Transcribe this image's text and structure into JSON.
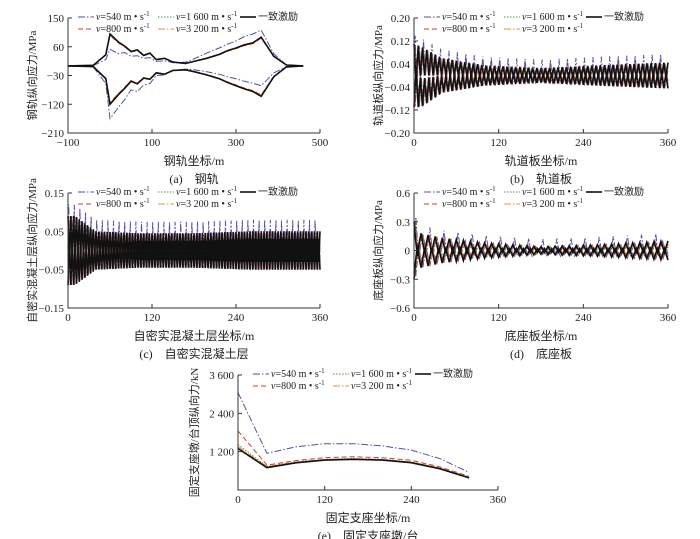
{
  "legend": [
    {
      "key": "v540",
      "pre": "v",
      "label": "=540 m • s",
      "sup": "-1",
      "color": "#4f4fae",
      "dash": "7 2 1.5 2",
      "width": 1
    },
    {
      "key": "v1600",
      "pre": "v",
      "label": "=1 600 m • s",
      "sup": "-1",
      "color": "#3f9f3f",
      "dash": "1.5 1.5",
      "width": 1
    },
    {
      "key": "cons",
      "pre": "",
      "label": "一致激励",
      "sup": "",
      "color": "#111111",
      "dash": "",
      "width": 1.6
    },
    {
      "key": "v800",
      "pre": "v",
      "label": "=800 m • s",
      "sup": "-1",
      "color": "#e0302a",
      "dash": "5 3",
      "width": 1
    },
    {
      "key": "v3200",
      "pre": "v",
      "label": "=3 200 m • s",
      "sup": "-1",
      "color": "#f08a30",
      "dash": "7 2 1.5 2",
      "width": 1
    }
  ],
  "chart_data": [
    {
      "id": "a",
      "type": "line",
      "caption": "(a)　钢轨",
      "xlabel": "钢轨坐标/m",
      "ylabel": "钢轨纵向应力/MPa",
      "xlim": [
        -100,
        500
      ],
      "ylim": [
        -210,
        150
      ],
      "xticks": [
        -100,
        100,
        300,
        500
      ],
      "xtick_labels": [
        "−100",
        "100",
        "300",
        "500"
      ],
      "yticks": [
        150,
        60,
        -30,
        -120,
        -210
      ],
      "ytick_labels": [
        "150",
        "60",
        "−30",
        "−120",
        "−210"
      ],
      "series": {
        "cons": {
          "x": [
            -100,
            -40,
            -10,
            0,
            20,
            35,
            50,
            65,
            80,
            95,
            110,
            130,
            150,
            180,
            200,
            230,
            260,
            280,
            300,
            320,
            340,
            360,
            390,
            420,
            460
          ],
          "upper": [
            0,
            2,
            35,
            100,
            75,
            62,
            45,
            50,
            33,
            40,
            20,
            24,
            12,
            8,
            14,
            24,
            36,
            48,
            56,
            66,
            72,
            90,
            30,
            3,
            0
          ],
          "lower": [
            0,
            -2,
            -40,
            -120,
            -90,
            -70,
            -48,
            -56,
            -38,
            -42,
            -22,
            -26,
            -14,
            -12,
            -18,
            -28,
            -40,
            -52,
            -62,
            -72,
            -80,
            -95,
            -34,
            -3,
            0
          ]
        },
        "v540": {
          "x": [
            -100,
            -40,
            -10,
            0,
            20,
            35,
            50,
            65,
            80,
            95,
            110,
            130,
            150,
            180,
            200,
            230,
            260,
            280,
            300,
            320,
            340,
            360,
            390,
            420,
            460
          ],
          "upper": [
            0,
            1,
            20,
            52,
            38,
            42,
            30,
            32,
            24,
            26,
            14,
            16,
            10,
            12,
            22,
            40,
            56,
            68,
            78,
            92,
            100,
            112,
            38,
            3,
            0
          ],
          "lower": [
            0,
            -3,
            -55,
            -165,
            -130,
            -105,
            -75,
            -80,
            -60,
            -55,
            -30,
            -28,
            -14,
            -10,
            -12,
            -18,
            -26,
            -34,
            -40,
            -48,
            -54,
            -62,
            -22,
            -2,
            0
          ]
        },
        "v800": {
          "scale_of": "cons",
          "factor": 0.96
        },
        "v1600": {
          "scale_of": "cons",
          "factor": 0.98
        },
        "v3200": {
          "scale_of": "cons",
          "factor": 0.97
        }
      }
    },
    {
      "id": "b",
      "type": "line",
      "caption": "(b)　轨道板",
      "xlabel": "轨道板坐标/m",
      "ylabel": "轨道板纵向应力/MPa",
      "xlim": [
        0,
        360
      ],
      "ylim": [
        -0.2,
        0.2
      ],
      "xticks": [
        0,
        120,
        240,
        360
      ],
      "xtick_labels": [
        "0",
        "120",
        "240",
        "360"
      ],
      "yticks": [
        0.2,
        0.12,
        0.04,
        -0.04,
        -0.12,
        -0.2
      ],
      "ytick_labels": [
        "0.20",
        "0.12",
        "0.04",
        "−0.04",
        "−0.12",
        "−0.20"
      ],
      "oscillation": {
        "period": 6,
        "x": [
          0,
          10,
          40,
          100,
          180,
          260,
          360
        ],
        "center_upper": [
          0.04,
          0.05,
          0.03,
          0.015,
          0.01,
          0.015,
          0.02
        ],
        "center_lower": [
          -0.04,
          -0.06,
          -0.03,
          -0.015,
          -0.01,
          -0.015,
          -0.02
        ],
        "amplitude": [
          0.07,
          0.05,
          0.03,
          0.02,
          0.015,
          0.02,
          0.025
        ],
        "extra_540": 0.03
      }
    },
    {
      "id": "c",
      "type": "line",
      "caption": "(c)　自密实混凝土层",
      "xlabel": "自密实混凝土层坐标/m",
      "ylabel": "自密实混凝土层纵向应力/MPa",
      "xlim": [
        0,
        360
      ],
      "ylim": [
        -0.15,
        0.15
      ],
      "xticks": [
        0,
        120,
        240,
        360
      ],
      "xtick_labels": [
        "0",
        "120",
        "240",
        "360"
      ],
      "yticks": [
        0.15,
        0.05,
        -0.05,
        -0.15
      ],
      "ytick_labels": [
        "0.15",
        "0.05",
        "−0.05",
        "−0.15"
      ],
      "oscillation": {
        "period": 4,
        "x": [
          0,
          10,
          40,
          100,
          180,
          260,
          360
        ],
        "center_upper": [
          0.03,
          0.04,
          0.02,
          0.01,
          0.01,
          0.01,
          0.01
        ],
        "center_lower": [
          -0.03,
          -0.04,
          -0.02,
          -0.01,
          -0.01,
          -0.01,
          -0.01
        ],
        "amplitude": [
          0.06,
          0.05,
          0.03,
          0.035,
          0.035,
          0.04,
          0.04
        ],
        "extra_540": 0.03
      }
    },
    {
      "id": "d",
      "type": "line",
      "caption": "(d)　底座板",
      "xlabel": "底座板坐标/m",
      "ylabel": "底座板纵向应力/MPa",
      "xlim": [
        0,
        360
      ],
      "ylim": [
        -0.6,
        0.6
      ],
      "xticks": [
        0,
        120,
        240,
        360
      ],
      "xtick_labels": [
        "0",
        "120",
        "240",
        "360"
      ],
      "yticks": [
        0.6,
        0.3,
        0,
        -0.3,
        -0.6
      ],
      "ytick_labels": [
        "0.6",
        "0.3",
        "0",
        "−0.3",
        "−0.6"
      ],
      "oscillation": {
        "period": 10,
        "x": [
          0,
          10,
          40,
          100,
          180,
          260,
          360
        ],
        "center_upper": [
          0.1,
          0.08,
          0.05,
          0.03,
          0.01,
          0.02,
          0.04
        ],
        "center_lower": [
          -0.1,
          -0.08,
          -0.05,
          -0.03,
          -0.01,
          -0.02,
          -0.04
        ],
        "amplitude": [
          0.2,
          0.1,
          0.08,
          0.05,
          0.03,
          0.04,
          0.06
        ],
        "extra_540": 0.08
      }
    },
    {
      "id": "e",
      "type": "line",
      "caption": "(e)　固定支座墩/台",
      "xlabel": "固定支座坐标/m",
      "ylabel": "固定支座墩/台顶纵向力/kN",
      "xlim": [
        0,
        360
      ],
      "ylim": [
        0,
        3600
      ],
      "xticks": [
        0,
        120,
        240,
        360
      ],
      "xtick_labels": [
        "0",
        "120",
        "240",
        "360"
      ],
      "yticks": [
        1200,
        2400,
        3600
      ],
      "ytick_labels": [
        "1 200",
        "2 400",
        "3 600"
      ],
      "series": {
        "v540": {
          "x": [
            0,
            40,
            80,
            120,
            160,
            200,
            240,
            280,
            320
          ],
          "y": [
            3050,
            1150,
            1350,
            1450,
            1450,
            1380,
            1250,
            980,
            550
          ]
        },
        "v800": {
          "x": [
            0,
            40,
            80,
            120,
            160,
            200,
            240,
            280,
            320
          ],
          "y": [
            1850,
            780,
            920,
            1010,
            1040,
            1010,
            930,
            720,
            430
          ]
        },
        "v1600": {
          "x": [
            0,
            40,
            80,
            120,
            160,
            200,
            240,
            280,
            320
          ],
          "y": [
            1420,
            740,
            880,
            960,
            985,
            960,
            880,
            690,
            410
          ]
        },
        "v3200": {
          "x": [
            0,
            40,
            80,
            120,
            160,
            200,
            240,
            280,
            320
          ],
          "y": [
            1360,
            730,
            870,
            950,
            975,
            950,
            870,
            680,
            400
          ]
        },
        "cons": {
          "x": [
            0,
            40,
            80,
            120,
            160,
            200,
            240,
            280,
            320
          ],
          "y": [
            1300,
            700,
            850,
            935,
            960,
            935,
            855,
            665,
            380
          ]
        }
      }
    }
  ]
}
